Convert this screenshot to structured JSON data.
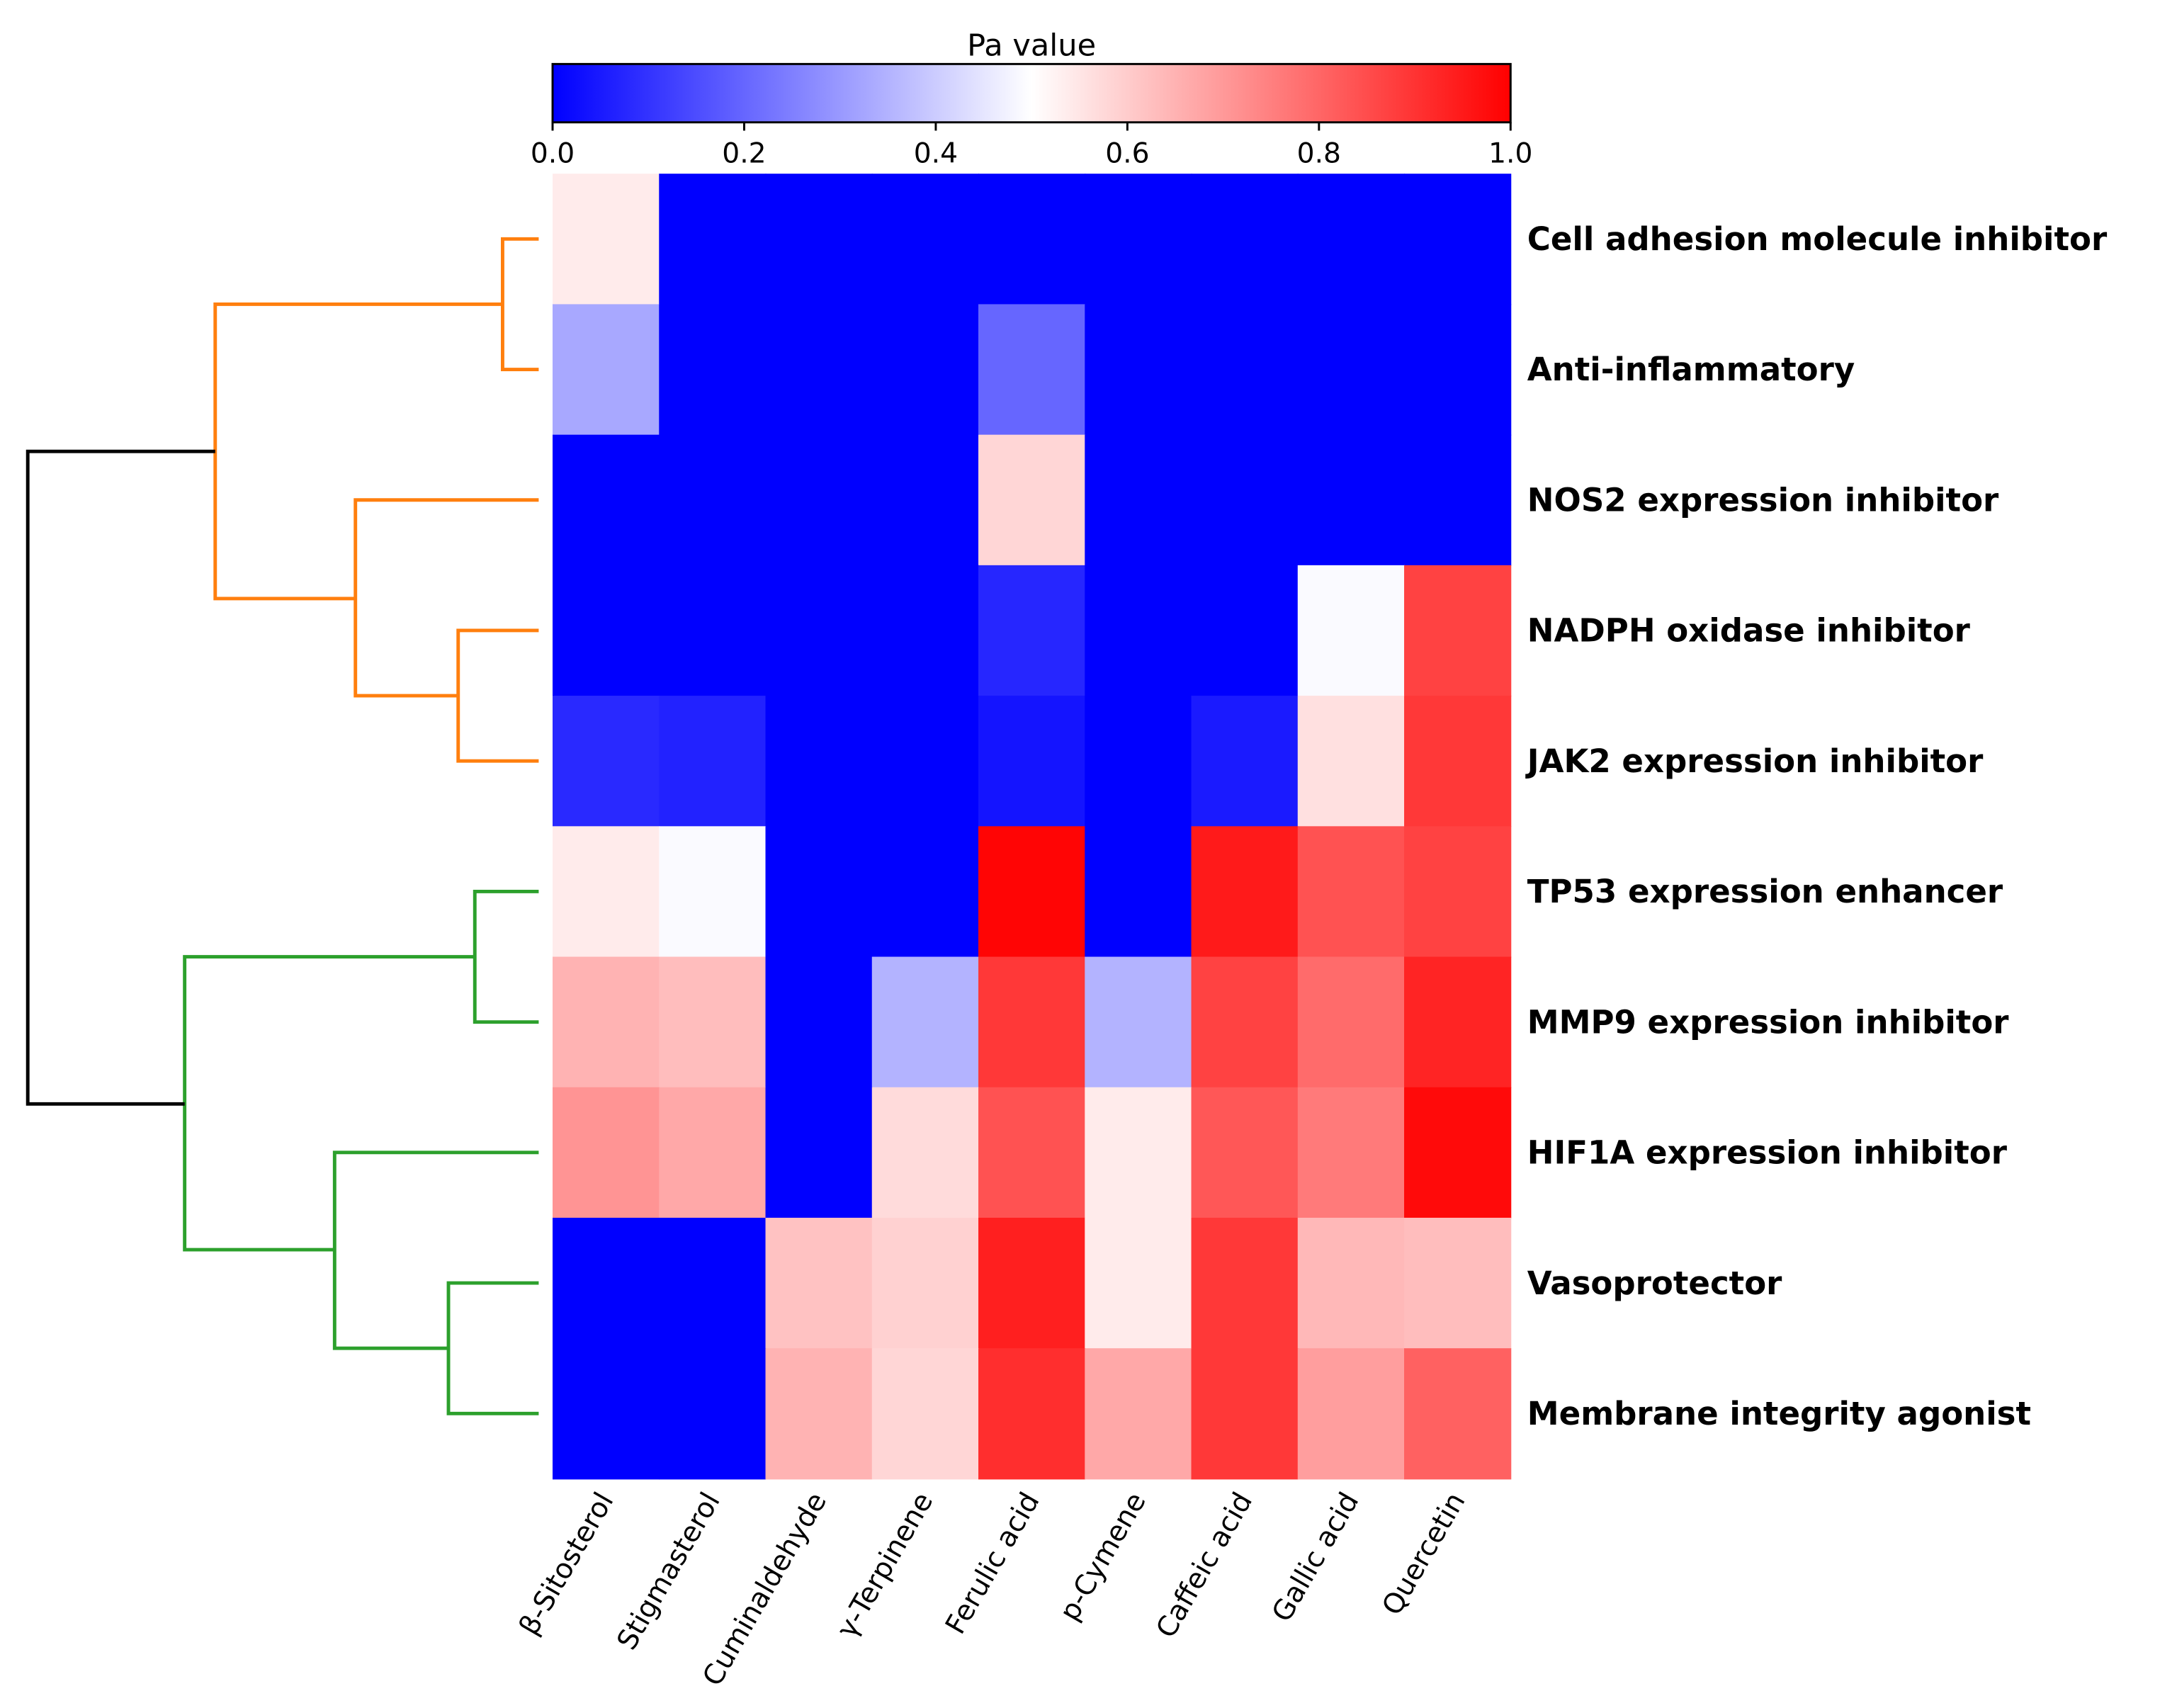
{
  "chart_data": {
    "type": "heatmap",
    "title": "",
    "colorbar": {
      "label": "Pa value",
      "range": [
        0,
        1
      ],
      "ticks": [
        "0.0",
        "0.2",
        "0.4",
        "0.6",
        "0.8",
        "1.0"
      ],
      "colormap": "bwr",
      "low_color": "#0000ff",
      "mid_color": "#ffffff",
      "high_color": "#ff0000"
    },
    "columns": [
      "β-Sitosterol",
      "Stigmasterol",
      "Cuminaldehyde",
      "γ-Terpinene",
      "Ferulic acid",
      "p-Cymene",
      "Caffeic acid",
      "Gallic acid",
      "Quercetin"
    ],
    "rows": [
      "Cell adhesion molecule inhibitor",
      "Anti-inflammatory",
      "NOS2 expression inhibitor",
      "NADPH oxidase inhibitor",
      "JAK2 expression inhibitor",
      "TP53 expression enhancer",
      "MMP9 expression inhibitor",
      "HIF1A expression inhibitor",
      "Vasoprotector",
      "Membrane integrity agonist"
    ],
    "values": [
      [
        0.54,
        0,
        0,
        0,
        0,
        0,
        0,
        0,
        0
      ],
      [
        0.33,
        0,
        0,
        0,
        0.2,
        0,
        0,
        0,
        0
      ],
      [
        0,
        0,
        0,
        0,
        0.58,
        0,
        0,
        0,
        0
      ],
      [
        0,
        0,
        0,
        0,
        0.075,
        0,
        0,
        0.49,
        0.87
      ],
      [
        0.08,
        0.067,
        0,
        0,
        0.04,
        0,
        0.05,
        0.56,
        0.89
      ],
      [
        0.54,
        0.49,
        0,
        0,
        0.99,
        0,
        0.95,
        0.84,
        0.87
      ],
      [
        0.65,
        0.63,
        0,
        0.35,
        0.89,
        0.35,
        0.87,
        0.79,
        0.93
      ],
      [
        0.71,
        0.67,
        0,
        0.57,
        0.84,
        0.54,
        0.83,
        0.76,
        0.98
      ],
      [
        0,
        0,
        0.62,
        0.59,
        0.94,
        0.54,
        0.89,
        0.64,
        0.63
      ],
      [
        0,
        0,
        0.65,
        0.58,
        0.91,
        0.67,
        0.89,
        0.69,
        0.81
      ]
    ],
    "dendrogram": {
      "side": "left",
      "clusters": [
        {
          "color": "#ff7f0e",
          "members": [
            "Cell adhesion molecule inhibitor",
            "Anti-inflammatory",
            "NOS2 expression inhibitor",
            "NADPH oxidase inhibitor",
            "JAK2 expression inhibitor"
          ]
        },
        {
          "color": "#2ca02c",
          "members": [
            "TP53 expression enhancer",
            "MMP9 expression inhibitor",
            "HIF1A expression inhibitor",
            "Vasoprotector",
            "Membrane integrity agonist"
          ]
        }
      ],
      "root_color": "#000000"
    }
  }
}
